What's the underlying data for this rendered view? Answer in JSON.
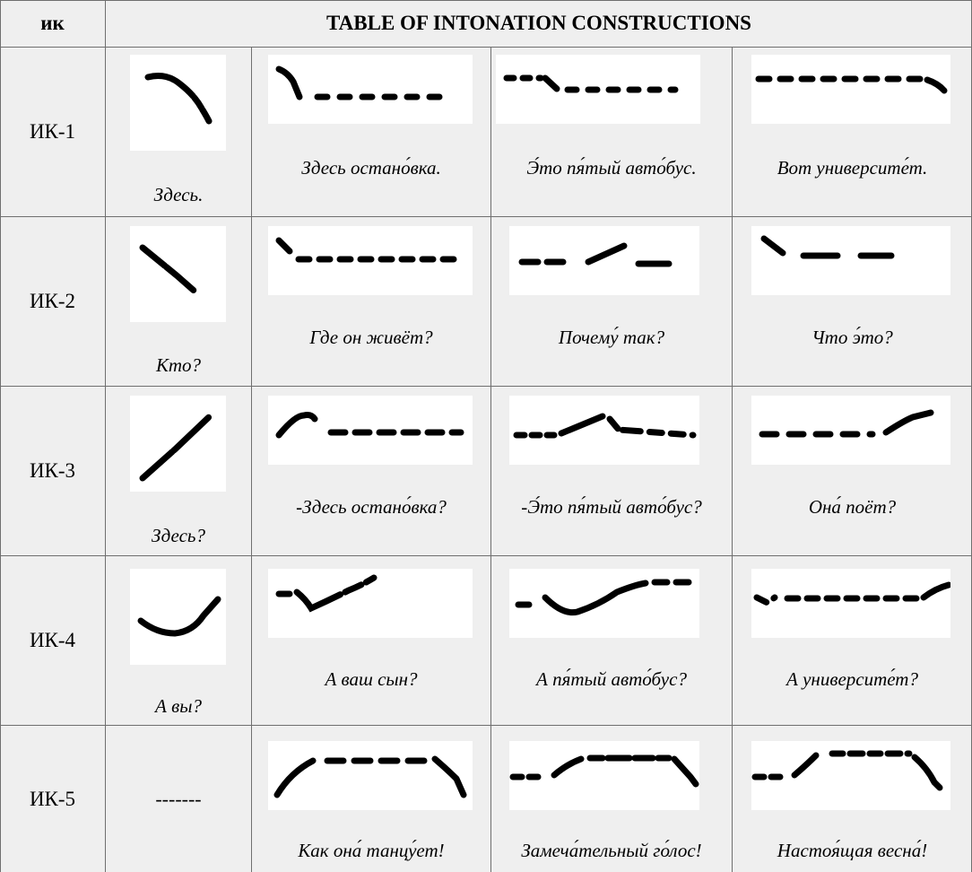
{
  "table": {
    "corner_header": "ик",
    "title_header": "TABLE OF INTONATION CONSTRUCTIONS",
    "rows": [
      {
        "label": "ИК-1",
        "short_example": "Здесь.",
        "examples": [
          "Здесь остано́вка.",
          "Э́то пя́тый авто́бус.",
          "Вот университе́т."
        ]
      },
      {
        "label": "ИК-2",
        "short_example": "Кто?",
        "examples": [
          "Где он живёт?",
          "Почему́ так?",
          "Что э́то?"
        ]
      },
      {
        "label": "ИК-3",
        "short_example": "Здесь?",
        "examples": [
          "-Здесь остано́вка?",
          "-Э́то пя́тый авто́бус?",
          "Она́ поёт?"
        ]
      },
      {
        "label": "ИК-4",
        "short_example": "А вы?",
        "examples": [
          "А ваш сын?",
          "А пя́тый авто́бус?",
          "А университе́т?"
        ]
      },
      {
        "label": "ИК-5",
        "short_example": "-------",
        "examples": [
          "Как она́ танцу́ет!",
          "Замеча́тельный го́лос!",
          "Настоя́щая весна́!"
        ]
      }
    ]
  }
}
